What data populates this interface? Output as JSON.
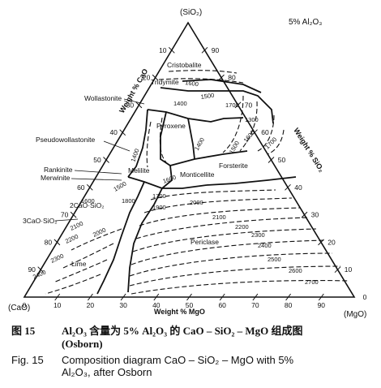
{
  "diagram": {
    "apex_labels": {
      "top": "(SiO₂)",
      "left": "(CaO)",
      "right": "(MgO)"
    },
    "annotation": "5% Al₂O₃",
    "axis_titles": {
      "left": "Weight % CaO",
      "right": "Weight % SiO₂",
      "bottom": "Weight % MgO"
    },
    "left_ticks": [
      "10",
      "20",
      "30",
      "40",
      "50",
      "60",
      "70",
      "80",
      "90"
    ],
    "right_ticks": [
      "90",
      "80",
      "70",
      "60",
      "50",
      "40",
      "30",
      "20",
      "10",
      "0"
    ],
    "bottom_ticks": [
      "0",
      "10",
      "20",
      "30",
      "40",
      "50",
      "60",
      "70",
      "80",
      "90"
    ],
    "phase_labels": [
      "Cristobalite",
      "Tridymite",
      "Wollastonite",
      "Pyroxene",
      "Pseudowollastonite",
      "Rankinite",
      "Merwinite",
      "Melilite",
      "Forsterite",
      "Monticellite",
      "2CaO·SiO₂",
      "3CaO·SiO₂",
      "Periclase",
      "Lime"
    ],
    "isotherm_labels": [
      "1600",
      "1500",
      "1700",
      "1400",
      "1300",
      "1400",
      "1500",
      "1600",
      "1700",
      "1600",
      "1500",
      "1400",
      "1600",
      "1700",
      "1800",
      "1900",
      "2000",
      "2100",
      "2200",
      "2300",
      "2400",
      "2500",
      "2600",
      "2700",
      "2200",
      "2300",
      "2400",
      "2100",
      "2000"
    ]
  },
  "caption": {
    "cn_number": "图 15",
    "cn_text": "Al₂O₃ 含量为 5% Al₂O₃ 的 CaO – SiO₂ – MgO 组成图",
    "cn_text_2": "(Osborn)",
    "en_number": "Fig. 15",
    "en_text": "Composition diagram CaO – SiO₂ – MgO with 5%",
    "en_text_2": "Al₂O₃, after Osborn"
  }
}
